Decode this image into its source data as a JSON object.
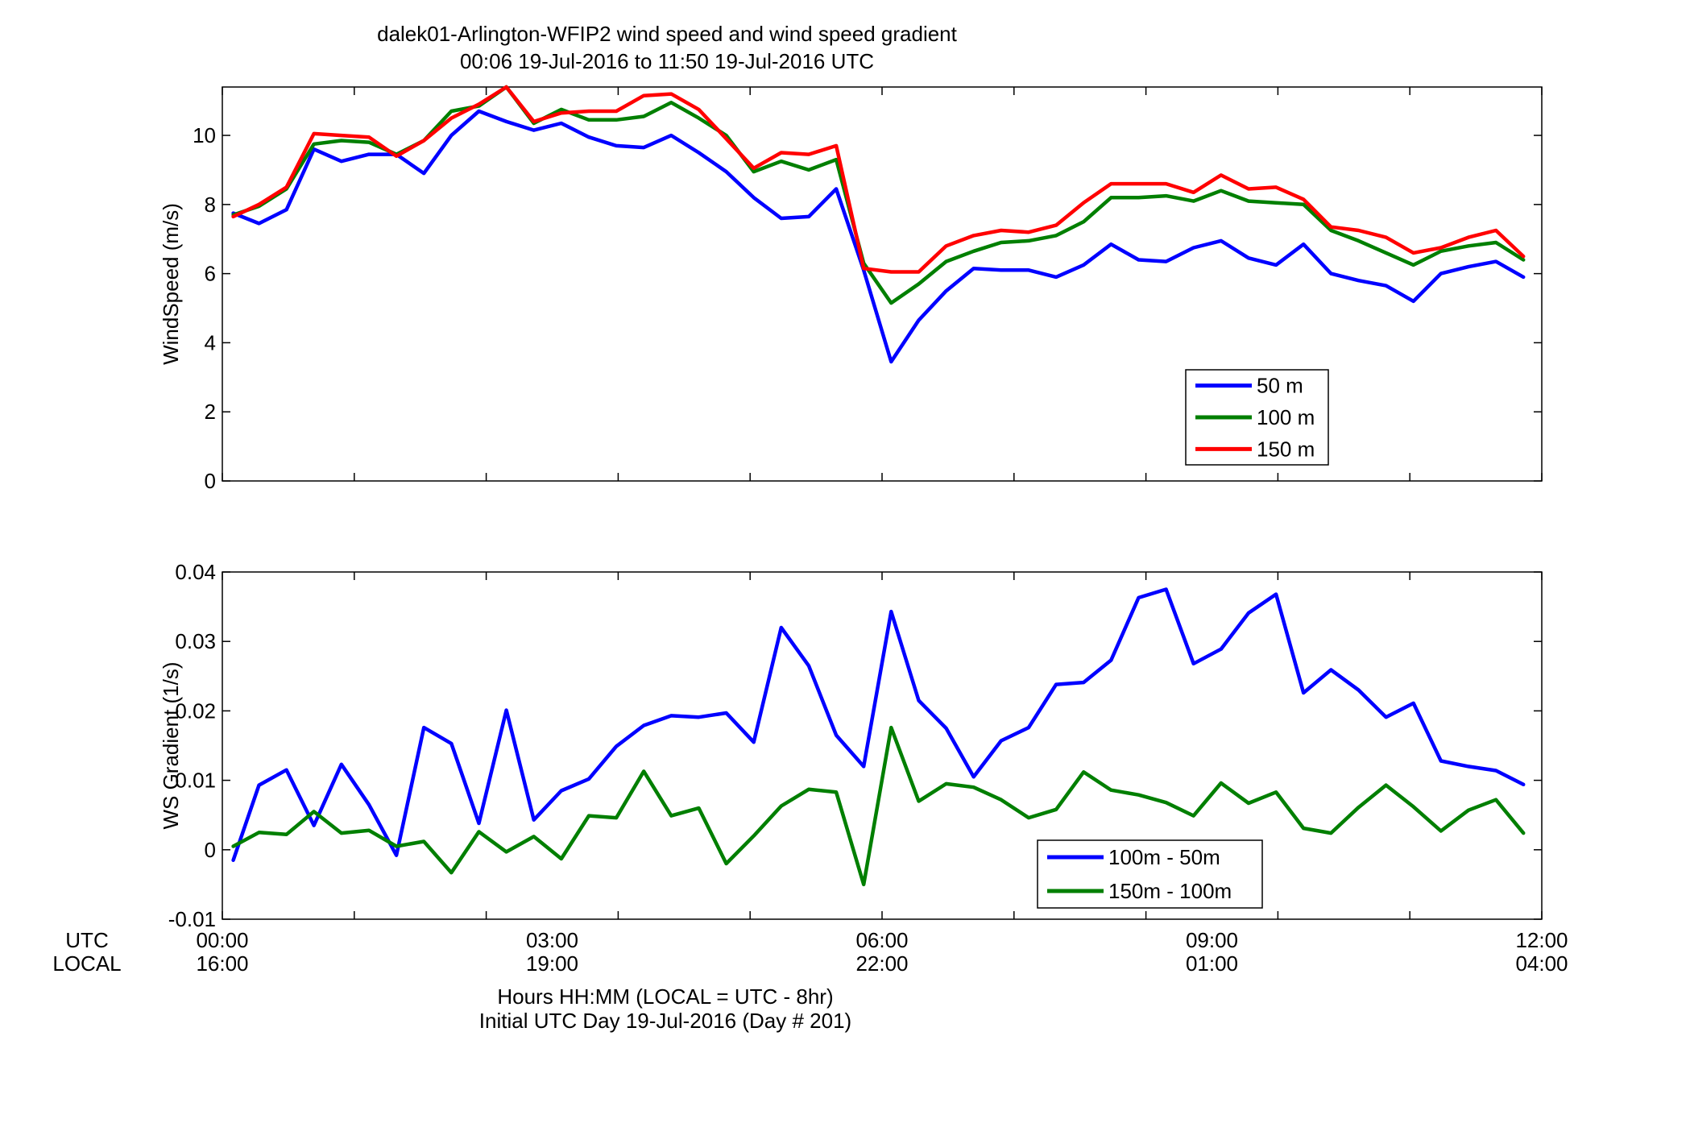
{
  "title_line1": "dalek01-Arlington-WFIP2  wind speed and wind speed gradient",
  "title_line2": "00:06 19-Jul-2016 to 11:50 19-Jul-2016  UTC",
  "x_axis": {
    "utc_row_label": "UTC",
    "local_row_label": "LOCAL",
    "utc_ticks": [
      "00:00",
      "03:00",
      "06:00",
      "09:00",
      "12:00"
    ],
    "local_ticks": [
      "16:00",
      "19:00",
      "22:00",
      "01:00",
      "04:00"
    ],
    "tick_hours": [
      0,
      3,
      6,
      9,
      12
    ],
    "xlabel_line1": "Hours HH:MM  (LOCAL = UTC - 8hr)",
    "xlabel_line2": "Initial UTC Day 19-Jul-2016 (Day # 201)"
  },
  "colors": {
    "blue": "#0000ff",
    "green": "#007f00",
    "red": "#ff0000"
  },
  "chart_data": [
    {
      "type": "line",
      "ylabel": "WindSpeed (m/s)",
      "xlim": [
        0,
        12
      ],
      "ylim": [
        0,
        11.4
      ],
      "yticks": [
        0,
        2,
        4,
        6,
        8,
        10
      ],
      "ytick_labels": [
        "0",
        "2",
        "4",
        "6",
        "8",
        "10"
      ],
      "minor_xticks_every_hours": 1.2,
      "legend_placement": "lower-right",
      "x_hours": [
        0.1,
        0.333,
        0.583,
        0.833,
        1.083,
        1.333,
        1.583,
        1.833,
        2.083,
        2.333,
        2.583,
        2.833,
        3.083,
        3.333,
        3.583,
        3.833,
        4.083,
        4.333,
        4.583,
        4.833,
        5.083,
        5.333,
        5.583,
        5.833,
        6.083,
        6.333,
        6.583,
        6.833,
        7.083,
        7.333,
        7.583,
        7.833,
        8.083,
        8.333,
        8.583,
        8.833,
        9.083,
        9.333,
        9.583,
        9.833,
        10.083,
        10.333,
        10.583,
        10.833,
        11.083,
        11.333,
        11.583,
        11.833
      ],
      "series": [
        {
          "name": "50 m",
          "color": "#0000ff",
          "values": [
            7.75,
            7.45,
            7.85,
            9.6,
            9.25,
            9.45,
            9.45,
            8.9,
            10.0,
            10.7,
            10.4,
            10.15,
            10.35,
            9.95,
            9.7,
            9.65,
            10.0,
            9.5,
            8.95,
            8.2,
            7.6,
            7.65,
            8.45,
            6.1,
            3.45,
            4.65,
            5.5,
            6.15,
            6.1,
            6.1,
            5.9,
            6.25,
            6.85,
            6.4,
            6.35,
            6.75,
            6.95,
            6.45,
            6.25,
            6.85,
            6.0,
            5.8,
            5.65,
            5.2,
            6.0,
            6.2,
            6.35,
            5.9
          ]
        },
        {
          "name": "100 m",
          "color": "#007f00",
          "values": [
            7.7,
            7.95,
            8.45,
            9.75,
            9.85,
            9.8,
            9.45,
            9.85,
            10.7,
            10.85,
            11.4,
            10.35,
            10.75,
            10.45,
            10.45,
            10.55,
            10.95,
            10.5,
            10.0,
            8.95,
            9.25,
            9.0,
            9.3,
            6.3,
            5.15,
            5.7,
            6.35,
            6.65,
            6.9,
            6.95,
            7.1,
            7.5,
            8.2,
            8.2,
            8.25,
            8.1,
            8.4,
            8.1,
            8.05,
            8.0,
            7.25,
            6.95,
            6.6,
            6.25,
            6.65,
            6.8,
            6.9,
            6.4
          ]
        },
        {
          "name": "150 m",
          "color": "#ff0000",
          "values": [
            7.65,
            8.0,
            8.5,
            10.05,
            10.0,
            9.95,
            9.4,
            9.85,
            10.5,
            10.9,
            11.4,
            10.4,
            10.65,
            10.7,
            10.7,
            11.15,
            11.2,
            10.75,
            9.9,
            9.05,
            9.5,
            9.45,
            9.7,
            6.15,
            6.05,
            6.05,
            6.8,
            7.1,
            7.25,
            7.2,
            7.4,
            8.05,
            8.6,
            8.6,
            8.6,
            8.35,
            8.85,
            8.45,
            8.5,
            8.15,
            7.35,
            7.25,
            7.05,
            6.6,
            6.75,
            7.05,
            7.25,
            6.5
          ]
        }
      ]
    },
    {
      "type": "line",
      "ylabel": "WS Gradient (1/s)",
      "xlim": [
        0,
        12
      ],
      "ylim": [
        -0.01,
        0.04
      ],
      "yticks": [
        -0.01,
        0,
        0.01,
        0.02,
        0.03,
        0.04
      ],
      "ytick_labels": [
        "-0.01",
        "0",
        "0.01",
        "0.02",
        "0.03",
        "0.04"
      ],
      "minor_xticks_every_hours": 1.2,
      "legend_placement": "lower-right",
      "x_hours": [
        0.1,
        0.333,
        0.583,
        0.833,
        1.083,
        1.333,
        1.583,
        1.833,
        2.083,
        2.333,
        2.583,
        2.833,
        3.083,
        3.333,
        3.583,
        3.833,
        4.083,
        4.333,
        4.583,
        4.833,
        5.083,
        5.333,
        5.583,
        5.833,
        6.083,
        6.333,
        6.583,
        6.833,
        7.083,
        7.333,
        7.583,
        7.833,
        8.083,
        8.333,
        8.583,
        8.833,
        9.083,
        9.333,
        9.583,
        9.833,
        10.083,
        10.333,
        10.583,
        10.833,
        11.083,
        11.333,
        11.583,
        11.833
      ],
      "series": [
        {
          "name": "100m - 50m",
          "color": "#0000ff",
          "values": [
            -0.0015,
            0.0093,
            0.0115,
            0.0035,
            0.0123,
            0.0065,
            -0.0008,
            0.0176,
            0.0153,
            0.0038,
            0.0201,
            0.0043,
            0.0085,
            0.0102,
            0.0149,
            0.0179,
            0.0193,
            0.0191,
            0.0197,
            0.0155,
            0.032,
            0.0265,
            0.0165,
            0.012,
            0.0343,
            0.0215,
            0.0175,
            0.0105,
            0.0157,
            0.0176,
            0.0238,
            0.0241,
            0.0273,
            0.0363,
            0.0375,
            0.0268,
            0.0289,
            0.0341,
            0.0368,
            0.0226,
            0.0259,
            0.023,
            0.0191,
            0.0211,
            0.0128,
            0.012,
            0.0114,
            0.0094
          ]
        },
        {
          "name": "150m - 100m",
          "color": "#007f00",
          "values": [
            0.0005,
            0.0025,
            0.0022,
            0.0055,
            0.0024,
            0.0028,
            0.0005,
            0.0012,
            -0.0033,
            0.0026,
            -0.0003,
            0.0019,
            -0.0013,
            0.0049,
            0.0046,
            0.0113,
            0.0049,
            0.006,
            -0.002,
            0.002,
            0.0063,
            0.0087,
            0.0083,
            -0.005,
            0.0176,
            0.007,
            0.0095,
            0.009,
            0.0072,
            0.0046,
            0.0058,
            0.0112,
            0.0086,
            0.0079,
            0.0068,
            0.0049,
            0.0096,
            0.0067,
            0.0083,
            0.0031,
            0.0024,
            0.0061,
            0.0093,
            0.0062,
            0.0027,
            0.0057,
            0.0072,
            0.0024
          ]
        }
      ]
    }
  ]
}
